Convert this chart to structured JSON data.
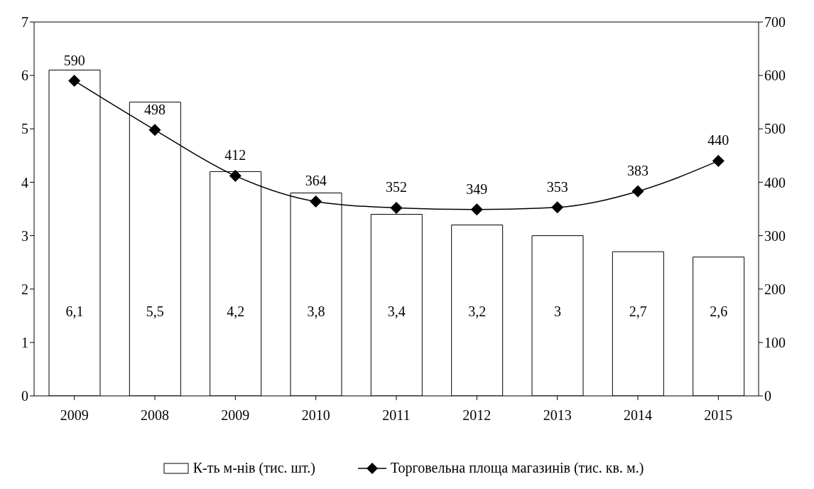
{
  "chart_data": {
    "type": "bar",
    "categories": [
      "2009",
      "2008",
      "2009",
      "2010",
      "2011",
      "2012",
      "2013",
      "2014",
      "2015"
    ],
    "series": [
      {
        "name": "К-ть м-нів (тис. шт.)",
        "color": "#ffffff",
        "values": [
          6.1,
          5.5,
          4.2,
          3.8,
          3.4,
          3.2,
          3,
          2.7,
          2.6
        ],
        "value_labels": [
          "6,1",
          "5,5",
          "4,2",
          "3,8",
          "3,4",
          "3,2",
          "3",
          "2,7",
          "2,6"
        ]
      },
      {
        "name": "Торговельна площа магазинів (тис. кв. м.)",
        "type": "line",
        "axis": "y2",
        "color": "#000000",
        "values": [
          590,
          498,
          412,
          364,
          352,
          349,
          353,
          383,
          440
        ],
        "value_labels": [
          "590",
          "498",
          "412",
          "364",
          "352",
          "349",
          "353",
          "383",
          "440"
        ]
      }
    ],
    "ylim": [
      0,
      7
    ],
    "yticks": [
      0,
      1,
      2,
      3,
      4,
      5,
      6,
      7
    ],
    "y2lim": [
      0,
      700
    ],
    "y2ticks": [
      0,
      100,
      200,
      300,
      400,
      500,
      600,
      700
    ],
    "grid": false,
    "legend": "bottom",
    "marker": "diamond",
    "line_style": "solid"
  }
}
